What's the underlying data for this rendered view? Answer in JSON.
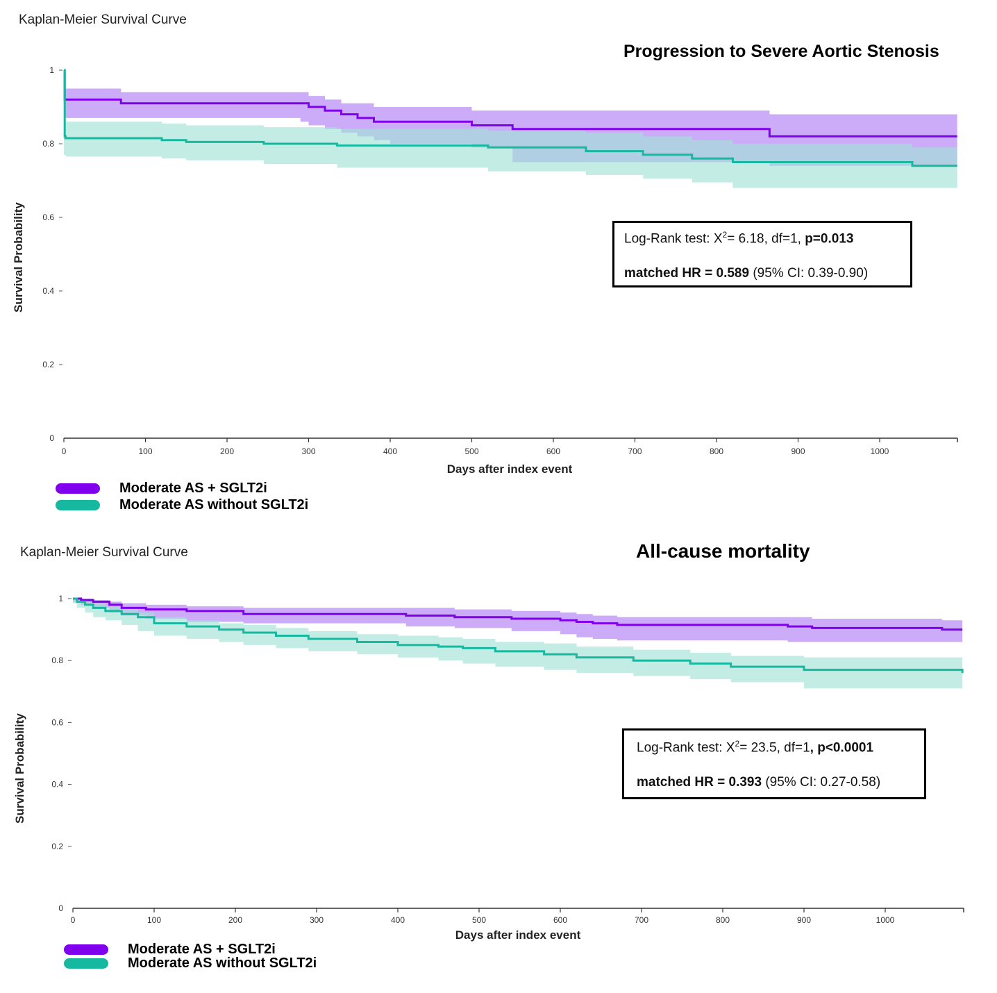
{
  "colors": {
    "treated": "#8000ee",
    "treated_band": "#d9a9ff",
    "control": "#17b8a0",
    "control_band": "#b7e9df"
  },
  "chart_data": [
    {
      "type": "line",
      "header": "Kaplan-Meier Survival Curve",
      "title": "Progression to Severe Aortic Stenosis",
      "xlabel": "Days after index event",
      "ylabel": "Survival Probability",
      "xlim": [
        0,
        1095
      ],
      "ylim": [
        0,
        1
      ],
      "xticks": [
        "0",
        "100",
        "200",
        "300",
        "400",
        "500",
        "600",
        "700",
        "800",
        "900",
        "1000"
      ],
      "yticks": [
        "0",
        "0.2",
        "0.4",
        "0.6",
        "0.8",
        "1"
      ],
      "stats": {
        "line1_prefix": "Log-Rank test: X",
        "line1_sup": "2",
        "line1_mid": "= 6.18, df=1, ",
        "line1_bold": "p=0.013",
        "line2_bold": "matched HR = 0.589",
        "line2_rest": " (95% CI: 0.39-0.90)"
      },
      "legend": [
        "Moderate AS + SGLT2i",
        "Moderate AS without SGLT2i"
      ],
      "series": [
        {
          "name": "Moderate AS + SGLT2i",
          "x": [
            0,
            1,
            2,
            70,
            290,
            300,
            320,
            340,
            360,
            380,
            400,
            500,
            550,
            865,
            1095
          ],
          "y": [
            1.0,
            0.92,
            0.92,
            0.91,
            0.91,
            0.9,
            0.89,
            0.88,
            0.87,
            0.86,
            0.86,
            0.85,
            0.84,
            0.82,
            0.82
          ],
          "lower": [
            1.0,
            0.89,
            0.89,
            0.87,
            0.87,
            0.86,
            0.85,
            0.84,
            0.83,
            0.82,
            0.81,
            0.8,
            0.79,
            0.75,
            0.74
          ],
          "upper": [
            1.0,
            0.95,
            0.95,
            0.94,
            0.94,
            0.93,
            0.92,
            0.91,
            0.91,
            0.9,
            0.9,
            0.89,
            0.89,
            0.88,
            0.88
          ]
        },
        {
          "name": "Moderate AS without SGLT2i",
          "x": [
            0,
            1,
            2,
            120,
            150,
            245,
            335,
            520,
            640,
            710,
            770,
            820,
            1040,
            1095
          ],
          "y": [
            1.0,
            0.82,
            0.815,
            0.81,
            0.805,
            0.8,
            0.795,
            0.79,
            0.78,
            0.77,
            0.76,
            0.75,
            0.74,
            0.74
          ],
          "lower": [
            1.0,
            0.77,
            0.77,
            0.765,
            0.76,
            0.755,
            0.745,
            0.735,
            0.725,
            0.715,
            0.705,
            0.695,
            0.68,
            0.68
          ],
          "upper": [
            1.0,
            0.86,
            0.86,
            0.855,
            0.85,
            0.845,
            0.84,
            0.835,
            0.83,
            0.82,
            0.81,
            0.8,
            0.79,
            0.79
          ]
        }
      ]
    },
    {
      "type": "line",
      "header": "Kaplan-Meier Survival Curve",
      "title": "All-cause mortality",
      "xlabel": "Days after index event",
      "ylabel": "Survival Probability",
      "xlim": [
        0,
        1095
      ],
      "ylim": [
        0,
        1
      ],
      "xticks": [
        "0",
        "100",
        "200",
        "300",
        "400",
        "500",
        "600",
        "700",
        "800",
        "900",
        "1000"
      ],
      "yticks": [
        "0",
        "0.2",
        "0.4",
        "0.6",
        "0.8",
        "1"
      ],
      "stats": {
        "line1_prefix": "Log-Rank test: X",
        "line1_sup": "2",
        "line1_mid": "= 23.5, df=1",
        "line1_bold": ", p<0.0001",
        "line2_bold": "matched HR = 0.393",
        "line2_rest": " (95% CI: 0.27-0.58)"
      },
      "legend": [
        "Moderate AS + SGLT2i",
        "Moderate AS without SGLT2i"
      ],
      "series": [
        {
          "name": "Moderate AS + SGLT2i",
          "x": [
            0,
            10,
            25,
            45,
            60,
            90,
            140,
            210,
            410,
            470,
            540,
            600,
            620,
            640,
            670,
            880,
            910,
            1070,
            1095
          ],
          "y": [
            1.0,
            0.995,
            0.99,
            0.98,
            0.97,
            0.965,
            0.96,
            0.95,
            0.945,
            0.94,
            0.935,
            0.93,
            0.925,
            0.92,
            0.915,
            0.91,
            0.905,
            0.9,
            0.9
          ],
          "lower": [
            1.0,
            0.99,
            0.98,
            0.97,
            0.955,
            0.945,
            0.935,
            0.925,
            0.92,
            0.91,
            0.905,
            0.895,
            0.885,
            0.875,
            0.87,
            0.865,
            0.86,
            0.86,
            0.86
          ],
          "upper": [
            1.0,
            1.0,
            0.995,
            0.99,
            0.985,
            0.98,
            0.975,
            0.97,
            0.97,
            0.965,
            0.96,
            0.955,
            0.95,
            0.945,
            0.94,
            0.94,
            0.935,
            0.93,
            0.93
          ]
        },
        {
          "name": "Moderate AS without SGLT2i",
          "x": [
            0,
            5,
            15,
            25,
            40,
            60,
            80,
            100,
            140,
            180,
            210,
            250,
            290,
            350,
            400,
            450,
            480,
            520,
            580,
            620,
            690,
            760,
            810,
            900,
            1095
          ],
          "y": [
            1.0,
            0.99,
            0.98,
            0.97,
            0.96,
            0.95,
            0.94,
            0.92,
            0.91,
            0.9,
            0.89,
            0.88,
            0.87,
            0.86,
            0.85,
            0.845,
            0.84,
            0.83,
            0.82,
            0.81,
            0.8,
            0.79,
            0.78,
            0.77,
            0.76
          ],
          "lower": [
            1.0,
            0.985,
            0.97,
            0.955,
            0.94,
            0.93,
            0.915,
            0.895,
            0.88,
            0.87,
            0.86,
            0.85,
            0.84,
            0.83,
            0.82,
            0.81,
            0.8,
            0.79,
            0.78,
            0.77,
            0.76,
            0.75,
            0.74,
            0.73,
            0.71
          ],
          "upper": [
            1.0,
            0.995,
            0.99,
            0.985,
            0.975,
            0.965,
            0.955,
            0.94,
            0.93,
            0.92,
            0.915,
            0.905,
            0.895,
            0.885,
            0.88,
            0.875,
            0.87,
            0.86,
            0.855,
            0.845,
            0.835,
            0.825,
            0.815,
            0.81,
            0.8
          ]
        }
      ]
    }
  ]
}
